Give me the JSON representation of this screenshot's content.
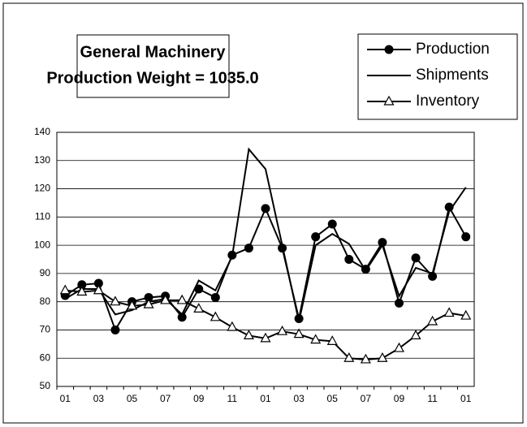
{
  "chart_data": {
    "type": "line",
    "title": "General Machinery",
    "subtitle": "Production Weight = 1035.0",
    "categories": [
      "01",
      null,
      "03",
      null,
      "05",
      null,
      "07",
      null,
      "09",
      null,
      "11",
      null,
      "01",
      null,
      "03",
      null,
      "05",
      null,
      "07",
      null,
      "09",
      null,
      "11",
      null,
      "01"
    ],
    "series": [
      {
        "name": "Production",
        "color": "#000000",
        "marker": "circle",
        "values": [
          82.2,
          86,
          86.5,
          70,
          80,
          81.5,
          82,
          74.5,
          84.5,
          81.5,
          96.5,
          99,
          113,
          99,
          74,
          103,
          107.5,
          95,
          91.5,
          101,
          79.5,
          95.5,
          89,
          113.5,
          103
        ]
      },
      {
        "name": "Shipments",
        "color": "#000000",
        "marker": "none",
        "values": [
          81,
          84.5,
          84.5,
          75.5,
          77,
          80,
          81,
          75.5,
          87.5,
          84,
          96,
          134,
          127,
          100,
          73,
          100,
          104,
          100.5,
          91,
          100,
          82,
          92,
          90,
          112,
          120.5
        ]
      },
      {
        "name": "Inventory",
        "color": "#000000",
        "marker": "triangle",
        "values": [
          84,
          83.5,
          84,
          80,
          78.5,
          79,
          80.5,
          80.5,
          77.5,
          74.5,
          71,
          68,
          67,
          69.5,
          68.5,
          66.5,
          66,
          60,
          59.5,
          60,
          63.5,
          68,
          73,
          76,
          75
        ]
      }
    ],
    "ylim": [
      50,
      140
    ],
    "yticks": [
      50,
      60,
      70,
      80,
      90,
      100,
      110,
      120,
      130,
      140
    ],
    "grid": true
  }
}
